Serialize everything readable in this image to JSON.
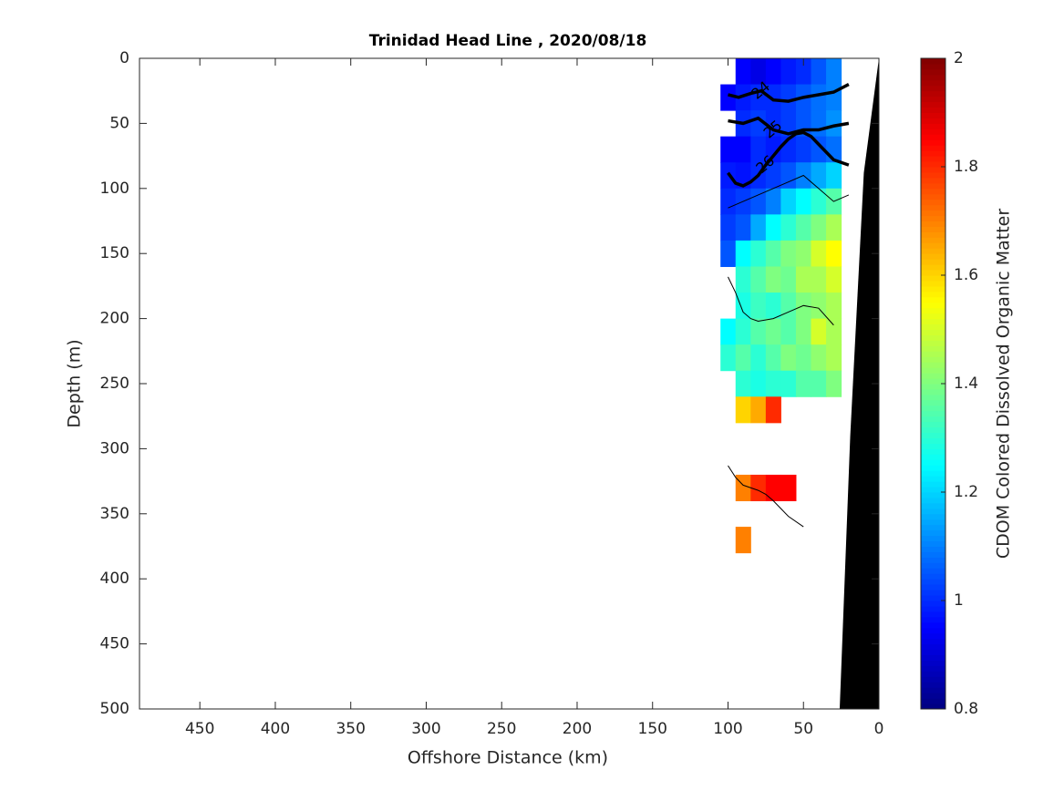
{
  "chart_data": {
    "type": "contour",
    "title": "Trinidad Head Line , 2020/08/18",
    "xlabel": "Offshore Distance (km)",
    "ylabel": "Depth (m)",
    "colorbar_label": "CDOM Colored Dissolved Organic Matter",
    "colormap": "jet",
    "xlim": [
      490,
      0
    ],
    "ylim": [
      500,
      0
    ],
    "xticks": [
      450,
      400,
      350,
      300,
      250,
      200,
      150,
      100,
      50,
      0
    ],
    "yticks": [
      0,
      50,
      100,
      150,
      200,
      250,
      300,
      350,
      400,
      450,
      500
    ],
    "clim": [
      0.8,
      2
    ],
    "cticks": [
      0.8,
      1,
      1.2,
      1.4,
      1.6,
      1.8,
      2
    ],
    "field": {
      "x": [
        100,
        90,
        80,
        70,
        60,
        50,
        40,
        30
      ],
      "y": [
        10,
        30,
        50,
        70,
        90,
        110,
        130,
        150,
        170,
        190,
        210,
        230,
        250,
        270,
        290,
        310,
        330,
        350,
        370
      ],
      "z": [
        [
          null,
          0.95,
          0.92,
          0.95,
          0.98,
          1.0,
          1.05,
          1.1
        ],
        [
          0.95,
          0.98,
          1.0,
          1.0,
          1.02,
          1.05,
          1.08,
          1.1
        ],
        [
          null,
          1.0,
          1.02,
          1.0,
          1.02,
          1.05,
          1.08,
          1.12
        ],
        [
          0.95,
          0.95,
          1.0,
          0.98,
          1.0,
          1.02,
          1.05,
          1.08
        ],
        [
          0.98,
          0.97,
          1.0,
          1.02,
          1.05,
          1.1,
          1.15,
          1.2
        ],
        [
          1.0,
          1.02,
          1.05,
          1.1,
          1.2,
          1.25,
          1.3,
          1.35
        ],
        [
          1.02,
          1.05,
          1.15,
          1.25,
          1.3,
          1.35,
          1.4,
          1.45
        ],
        [
          1.05,
          1.25,
          1.3,
          1.35,
          1.4,
          1.42,
          1.5,
          1.55
        ],
        [
          null,
          1.3,
          1.35,
          1.4,
          1.38,
          1.45,
          1.45,
          1.5
        ],
        [
          null,
          1.28,
          1.32,
          1.3,
          1.35,
          1.4,
          1.42,
          1.45
        ],
        [
          1.25,
          1.3,
          1.35,
          1.38,
          1.35,
          1.4,
          1.5,
          1.45
        ],
        [
          1.3,
          1.35,
          1.3,
          1.35,
          1.4,
          1.38,
          1.42,
          1.45
        ],
        [
          null,
          1.3,
          1.28,
          1.3,
          1.3,
          1.35,
          1.35,
          1.4
        ],
        [
          null,
          1.6,
          1.65,
          1.8,
          null,
          null,
          null,
          null
        ],
        [
          null,
          null,
          null,
          null,
          null,
          null,
          null,
          null
        ],
        [
          null,
          null,
          null,
          null,
          null,
          null,
          null,
          null
        ],
        [
          null,
          1.7,
          1.8,
          1.85,
          1.85,
          null,
          null,
          null
        ],
        [
          null,
          null,
          null,
          null,
          null,
          null,
          null,
          null
        ],
        [
          null,
          1.7,
          null,
          null,
          null,
          null,
          null,
          null
        ]
      ]
    },
    "contours": [
      {
        "level": 24,
        "x": [
          100,
          93,
          85,
          78,
          70,
          60,
          50,
          40,
          30,
          20
        ],
        "y": [
          28,
          30,
          27,
          25,
          32,
          33,
          30,
          28,
          26,
          20
        ]
      },
      {
        "level": 25,
        "x": [
          100,
          90,
          80,
          70,
          60,
          50,
          40,
          30,
          20
        ],
        "y": [
          48,
          50,
          46,
          55,
          58,
          55,
          55,
          52,
          50
        ]
      },
      {
        "level": 26,
        "x": [
          100,
          95,
          90,
          85,
          80,
          75,
          70,
          65,
          60,
          55,
          50,
          45,
          40,
          30,
          20
        ],
        "y": [
          88,
          96,
          98,
          95,
          90,
          82,
          75,
          68,
          62,
          58,
          57,
          60,
          66,
          78,
          82
        ]
      }
    ],
    "lines": [
      {
        "x": [
          100,
          90,
          80,
          70,
          60,
          50,
          40,
          30,
          20
        ],
        "y": [
          115,
          110,
          105,
          100,
          95,
          90,
          100,
          110,
          105
        ]
      },
      {
        "x": [
          100,
          95,
          90,
          85,
          80,
          70,
          60,
          50,
          40,
          30
        ],
        "y": [
          168,
          180,
          195,
          200,
          202,
          200,
          195,
          190,
          192,
          205
        ]
      },
      {
        "x": [
          100,
          95,
          90,
          85,
          80,
          75,
          70,
          60,
          50
        ],
        "y": [
          313,
          322,
          328,
          330,
          332,
          335,
          340,
          352,
          360
        ]
      }
    ],
    "bathymetry": {
      "color": "#000000",
      "x": [
        0,
        10,
        19,
        26,
        0
      ],
      "y": [
        0,
        88,
        290,
        500,
        500
      ]
    }
  }
}
